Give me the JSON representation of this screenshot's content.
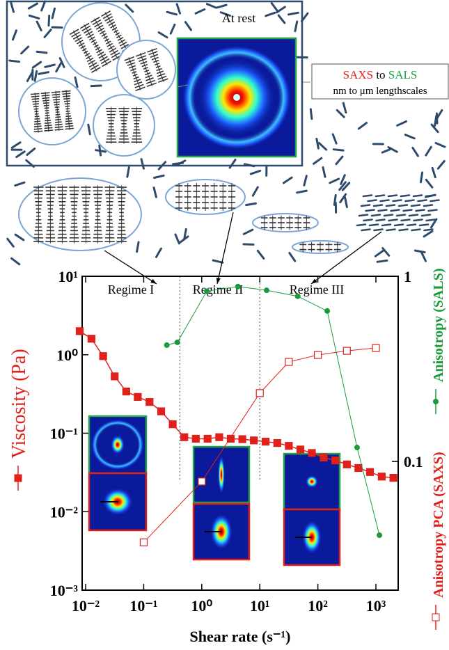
{
  "schematic": {
    "rest_label": "At rest",
    "scale_box": {
      "saxs": "SAXS",
      "to": "to",
      "sals": "SALS",
      "range": "nm to μm lengthscales"
    }
  },
  "chart_data": {
    "type": "line",
    "xlabel": "Shear rate (s⁻¹)",
    "xlim": [
      0.0087,
      2420
    ],
    "ylim": [
      0.001,
      10
    ],
    "y2lim": [
      0.0202,
      1
    ],
    "log_x": true,
    "log_y": true,
    "log_y2": true,
    "xticks": [
      {
        "value": 0.01,
        "label": "10⁻²"
      },
      {
        "value": 0.1,
        "label": "10⁻¹"
      },
      {
        "value": 1,
        "label": "10⁰"
      },
      {
        "value": 10,
        "label": "10¹"
      },
      {
        "value": 100,
        "label": "10²"
      },
      {
        "value": 1000,
        "label": "10³"
      }
    ],
    "yticks": [
      {
        "value": 0.001,
        "label": "10⁻³"
      },
      {
        "value": 0.01,
        "label": "10⁻²"
      },
      {
        "value": 0.1,
        "label": "10⁻¹"
      },
      {
        "value": 1,
        "label": "10⁰"
      },
      {
        "value": 10,
        "label": "10¹"
      }
    ],
    "y2ticks": [
      0.1,
      1
    ],
    "regimes": [
      "Regime I",
      "Regime II",
      "Regime III"
    ],
    "regime_boundaries": [
      0.42,
      10
    ],
    "series": [
      {
        "name": "Viscosity (Pa)",
        "color": "#e0201b",
        "marker": "square-filled",
        "axis": "y",
        "x": [
          0.0079,
          0.0126,
          0.02,
          0.0316,
          0.05,
          0.079,
          0.126,
          0.2,
          0.316,
          0.5,
          0.79,
          1.26,
          2,
          3.16,
          5,
          7.9,
          12.6,
          20,
          31.6,
          50,
          79,
          126,
          200,
          316,
          500,
          790,
          1260,
          2000
        ],
        "values": [
          2.0,
          1.6,
          0.96,
          0.53,
          0.34,
          0.29,
          0.25,
          0.19,
          0.13,
          0.089,
          0.085,
          0.085,
          0.089,
          0.085,
          0.084,
          0.081,
          0.078,
          0.075,
          0.069,
          0.062,
          0.056,
          0.049,
          0.045,
          0.04,
          0.036,
          0.032,
          0.028,
          0.027
        ]
      },
      {
        "name": "Anisotropy (SALS)",
        "color": "#1a9a3a",
        "marker": "circle",
        "axis": "y2",
        "x": [
          0.25,
          0.38,
          1.22,
          4.2,
          13.1,
          45,
          145,
          474,
          1150
        ],
        "values": [
          0.425,
          0.44,
          0.83,
          0.88,
          0.84,
          0.78,
          0.65,
          0.119,
          0.04
        ]
      },
      {
        "name": "Anisotropy PCA (SAXS)",
        "color": "#e0201b",
        "marker": "square-open",
        "axis": "y2",
        "x": [
          0.1,
          1,
          10,
          31.6,
          100,
          316,
          1000
        ],
        "values": [
          0.0366,
          0.078,
          0.234,
          0.345,
          0.376,
          0.396,
          0.41
        ]
      }
    ]
  }
}
